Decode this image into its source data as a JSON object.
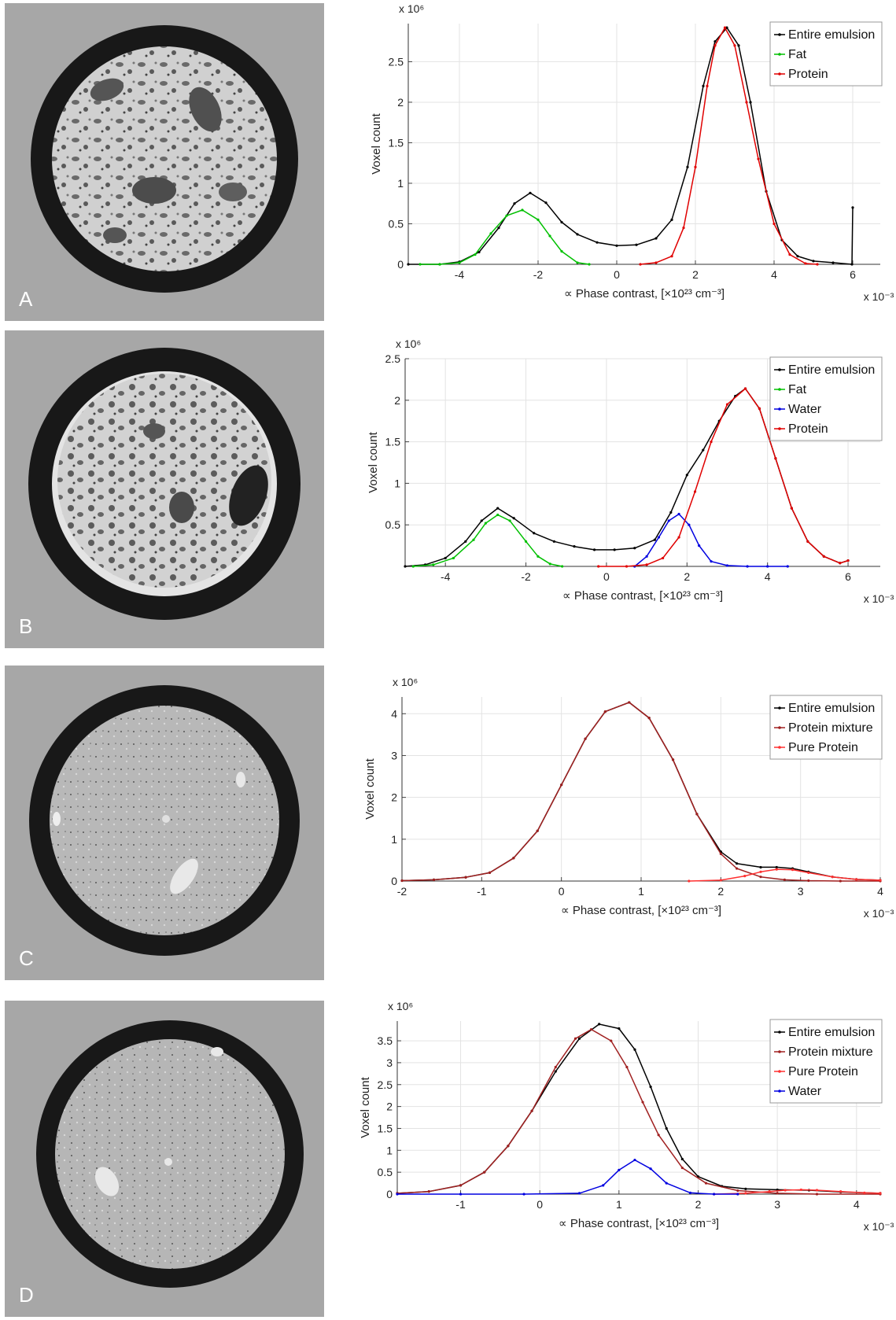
{
  "panels": [
    "A",
    "B",
    "C",
    "D"
  ],
  "chart_data": [
    {
      "type": "line",
      "panel": "A",
      "xlabel": "∝ Phase contrast, [×10²³ cm⁻³]",
      "ylabel": "Voxel count",
      "x_multiplier": "x 10⁻³",
      "y_multiplier": "x 10⁶",
      "xlim": [
        -5.3,
        6.7
      ],
      "ylim": [
        0,
        2.97
      ],
      "xticks": [
        -4,
        -2,
        0,
        2,
        4,
        6
      ],
      "xtick_labels": [
        "-4",
        "-2",
        "0",
        "2",
        "4",
        "6"
      ],
      "yticks": [
        0,
        0.5,
        1,
        1.5,
        2,
        2.5
      ],
      "ytick_labels": [
        "0",
        "0.5",
        "1",
        "1.5",
        "2",
        "2.5"
      ],
      "grid": true,
      "legend_position": "top-right",
      "series": [
        {
          "name": "Entire emulsion",
          "color": "#000000",
          "x": [
            -5.3,
            -4.5,
            -4,
            -3.5,
            -3,
            -2.6,
            -2.2,
            -1.8,
            -1.4,
            -1,
            -0.5,
            0,
            0.5,
            1,
            1.4,
            1.8,
            2.2,
            2.5,
            2.8,
            3.1,
            3.4,
            3.8,
            4.2,
            4.6,
            5,
            5.5,
            5.98,
            6.0
          ],
          "y": [
            0,
            0,
            0.03,
            0.15,
            0.45,
            0.75,
            0.88,
            0.76,
            0.52,
            0.37,
            0.27,
            0.23,
            0.24,
            0.32,
            0.55,
            1.2,
            2.2,
            2.75,
            2.92,
            2.7,
            2.0,
            0.9,
            0.3,
            0.1,
            0.04,
            0.02,
            0.0,
            0.7
          ]
        },
        {
          "name": "Fat",
          "color": "#00c000",
          "x": [
            -5.0,
            -4.5,
            -4,
            -3.6,
            -3.2,
            -2.8,
            -2.4,
            -2.0,
            -1.7,
            -1.4,
            -1.0,
            -0.7
          ],
          "y": [
            0,
            0,
            0.02,
            0.12,
            0.38,
            0.6,
            0.67,
            0.55,
            0.35,
            0.16,
            0.02,
            0
          ]
        },
        {
          "name": "Protein",
          "color": "#e00000",
          "x": [
            0.6,
            1.0,
            1.4,
            1.7,
            2.0,
            2.3,
            2.5,
            2.75,
            3.0,
            3.3,
            3.6,
            4.0,
            4.4,
            4.8,
            5.1
          ],
          "y": [
            0,
            0.02,
            0.1,
            0.45,
            1.2,
            2.2,
            2.7,
            2.92,
            2.7,
            2.0,
            1.3,
            0.5,
            0.12,
            0.01,
            0
          ]
        }
      ]
    },
    {
      "type": "line",
      "panel": "B",
      "xlabel": "∝ Phase contrast, [×10²³ cm⁻³]",
      "ylabel": "Voxel count",
      "x_multiplier": "x 10⁻³",
      "y_multiplier": "x 10⁶",
      "xlim": [
        -5.0,
        6.8
      ],
      "ylim": [
        0,
        2.5
      ],
      "xticks": [
        -4,
        -2,
        0,
        2,
        4,
        6
      ],
      "xtick_labels": [
        "-4",
        "-2",
        "0",
        "2",
        "4",
        "6"
      ],
      "yticks": [
        0.5,
        1,
        1.5,
        2,
        2.5
      ],
      "ytick_labels": [
        "0.5",
        "1",
        "1.5",
        "2",
        "2.5"
      ],
      "grid": true,
      "legend_position": "top-right",
      "series": [
        {
          "name": "Entire emulsion",
          "color": "#000000",
          "x": [
            -5.0,
            -4.5,
            -4,
            -3.5,
            -3.1,
            -2.7,
            -2.3,
            -1.8,
            -1.3,
            -0.8,
            -0.3,
            0.2,
            0.7,
            1.2,
            1.6,
            2.0,
            2.4,
            2.8,
            3.2,
            3.45,
            3.8,
            4.2,
            4.6,
            5.0,
            5.4,
            5.8,
            6.0
          ],
          "y": [
            0,
            0.02,
            0.1,
            0.3,
            0.55,
            0.7,
            0.58,
            0.4,
            0.3,
            0.24,
            0.2,
            0.2,
            0.22,
            0.32,
            0.65,
            1.1,
            1.4,
            1.75,
            2.05,
            2.14,
            1.9,
            1.3,
            0.7,
            0.3,
            0.12,
            0.04,
            0.07
          ]
        },
        {
          "name": "Fat",
          "color": "#00c000",
          "x": [
            -4.8,
            -4.3,
            -3.8,
            -3.3,
            -3.0,
            -2.7,
            -2.4,
            -2.0,
            -1.7,
            -1.4,
            -1.1
          ],
          "y": [
            0,
            0.02,
            0.1,
            0.32,
            0.52,
            0.62,
            0.55,
            0.3,
            0.12,
            0.03,
            0
          ]
        },
        {
          "name": "Water",
          "color": "#0000e0",
          "x": [
            0.7,
            1.0,
            1.3,
            1.55,
            1.8,
            2.05,
            2.3,
            2.6,
            3.0,
            3.5,
            4.0,
            4.5
          ],
          "y": [
            0,
            0.12,
            0.35,
            0.55,
            0.63,
            0.5,
            0.25,
            0.06,
            0.01,
            0,
            0,
            0
          ]
        },
        {
          "name": "Protein",
          "color": "#e00000",
          "x": [
            -0.2,
            0.5,
            1.0,
            1.4,
            1.8,
            2.2,
            2.6,
            3.0,
            3.45,
            3.8,
            4.2,
            4.6,
            5.0,
            5.4,
            5.8,
            6.0
          ],
          "y": [
            0,
            0,
            0.02,
            0.1,
            0.35,
            0.9,
            1.5,
            1.95,
            2.14,
            1.9,
            1.3,
            0.7,
            0.3,
            0.12,
            0.04,
            0.07
          ]
        }
      ]
    },
    {
      "type": "line",
      "panel": "C",
      "xlabel": "∝ Phase contrast, [×10²³ cm⁻³]",
      "ylabel": "Voxel count",
      "x_multiplier": "x 10⁻³",
      "y_multiplier": "x 10⁶",
      "xlim": [
        -2,
        4
      ],
      "ylim": [
        0,
        4.4
      ],
      "xticks": [
        -2,
        -1,
        0,
        1,
        2,
        3,
        4
      ],
      "xtick_labels": [
        "-2",
        "-1",
        "0",
        "1",
        "2",
        "3",
        "4"
      ],
      "yticks": [
        0,
        1,
        2,
        3,
        4
      ],
      "ytick_labels": [
        "0",
        "1",
        "2",
        "3",
        "4"
      ],
      "grid": true,
      "legend_position": "top-right",
      "series": [
        {
          "name": "Entire emulsion",
          "color": "#000000",
          "x": [
            -2,
            -1.6,
            -1.2,
            -0.9,
            -0.6,
            -0.3,
            0,
            0.3,
            0.55,
            0.85,
            1.1,
            1.4,
            1.7,
            2.0,
            2.2,
            2.5,
            2.7,
            2.9,
            3.1,
            3.4,
            3.7,
            4.0
          ],
          "y": [
            0.01,
            0.03,
            0.09,
            0.2,
            0.55,
            1.2,
            2.3,
            3.4,
            4.05,
            4.27,
            3.9,
            2.9,
            1.6,
            0.7,
            0.42,
            0.33,
            0.33,
            0.3,
            0.22,
            0.1,
            0.04,
            0.02
          ]
        },
        {
          "name": "Protein mixture",
          "color": "#a02020",
          "x": [
            -2,
            -1.6,
            -1.2,
            -0.9,
            -0.6,
            -0.3,
            0,
            0.3,
            0.55,
            0.85,
            1.1,
            1.4,
            1.7,
            2.0,
            2.2,
            2.5,
            2.8,
            3.1,
            3.5,
            4.0
          ],
          "y": [
            0.01,
            0.03,
            0.09,
            0.2,
            0.55,
            1.2,
            2.3,
            3.4,
            4.05,
            4.27,
            3.9,
            2.9,
            1.6,
            0.65,
            0.3,
            0.1,
            0.03,
            0.01,
            0,
            0
          ]
        },
        {
          "name": "Pure Protein",
          "color": "#ff3030",
          "x": [
            1.6,
            2.0,
            2.3,
            2.5,
            2.7,
            2.9,
            3.1,
            3.4,
            3.7,
            4.0
          ],
          "y": [
            0,
            0.02,
            0.12,
            0.22,
            0.28,
            0.27,
            0.2,
            0.1,
            0.04,
            0.02
          ]
        }
      ]
    },
    {
      "type": "line",
      "panel": "D",
      "xlabel": "∝ Phase contrast, [×10²³ cm⁻³]",
      "ylabel": "Voxel count",
      "x_multiplier": "x 10⁻³",
      "y_multiplier": "x 10⁶",
      "xlim": [
        -1.8,
        4.3
      ],
      "ylim": [
        0,
        3.95
      ],
      "xticks": [
        -1,
        0,
        1,
        2,
        3,
        4
      ],
      "xtick_labels": [
        "-1",
        "0",
        "1",
        "2",
        "3",
        "4"
      ],
      "yticks": [
        0,
        0.5,
        1,
        1.5,
        2,
        2.5,
        3,
        3.5
      ],
      "ytick_labels": [
        "0",
        "0.5",
        "1",
        "1.5",
        "2",
        "2.5",
        "3",
        "3.5"
      ],
      "grid": true,
      "legend_position": "top-right",
      "series": [
        {
          "name": "Entire emulsion",
          "color": "#000000",
          "x": [
            -1.8,
            -1.4,
            -1.0,
            -0.7,
            -0.4,
            -0.1,
            0.2,
            0.5,
            0.75,
            1.0,
            1.2,
            1.4,
            1.6,
            1.8,
            2.0,
            2.3,
            2.6,
            3.0,
            3.4,
            3.8,
            4.3
          ],
          "y": [
            0.02,
            0.06,
            0.2,
            0.5,
            1.1,
            1.9,
            2.8,
            3.55,
            3.88,
            3.78,
            3.3,
            2.45,
            1.5,
            0.8,
            0.4,
            0.18,
            0.12,
            0.1,
            0.09,
            0.05,
            0.02
          ]
        },
        {
          "name": "Protein mixture",
          "color": "#a02020",
          "x": [
            -1.8,
            -1.4,
            -1.0,
            -0.7,
            -0.4,
            -0.1,
            0.2,
            0.45,
            0.65,
            0.9,
            1.1,
            1.3,
            1.5,
            1.8,
            2.1,
            2.5,
            3.0,
            3.5,
            4.3
          ],
          "y": [
            0.02,
            0.06,
            0.2,
            0.5,
            1.1,
            1.9,
            2.9,
            3.55,
            3.76,
            3.5,
            2.9,
            2.1,
            1.35,
            0.6,
            0.25,
            0.08,
            0.02,
            0,
            0
          ]
        },
        {
          "name": "Pure Protein",
          "color": "#ff3030",
          "x": [
            2.2,
            2.6,
            2.9,
            3.1,
            3.3,
            3.5,
            3.8,
            4.1,
            4.3
          ],
          "y": [
            0,
            0.02,
            0.06,
            0.09,
            0.1,
            0.09,
            0.06,
            0.03,
            0.02
          ]
        },
        {
          "name": "Water",
          "color": "#0000e0",
          "x": [
            -1.8,
            -1.0,
            -0.2,
            0.5,
            0.8,
            1.0,
            1.2,
            1.4,
            1.6,
            1.9,
            2.2,
            2.5
          ],
          "y": [
            0,
            0,
            0,
            0.02,
            0.2,
            0.55,
            0.78,
            0.58,
            0.25,
            0.03,
            0,
            0
          ]
        }
      ]
    }
  ]
}
